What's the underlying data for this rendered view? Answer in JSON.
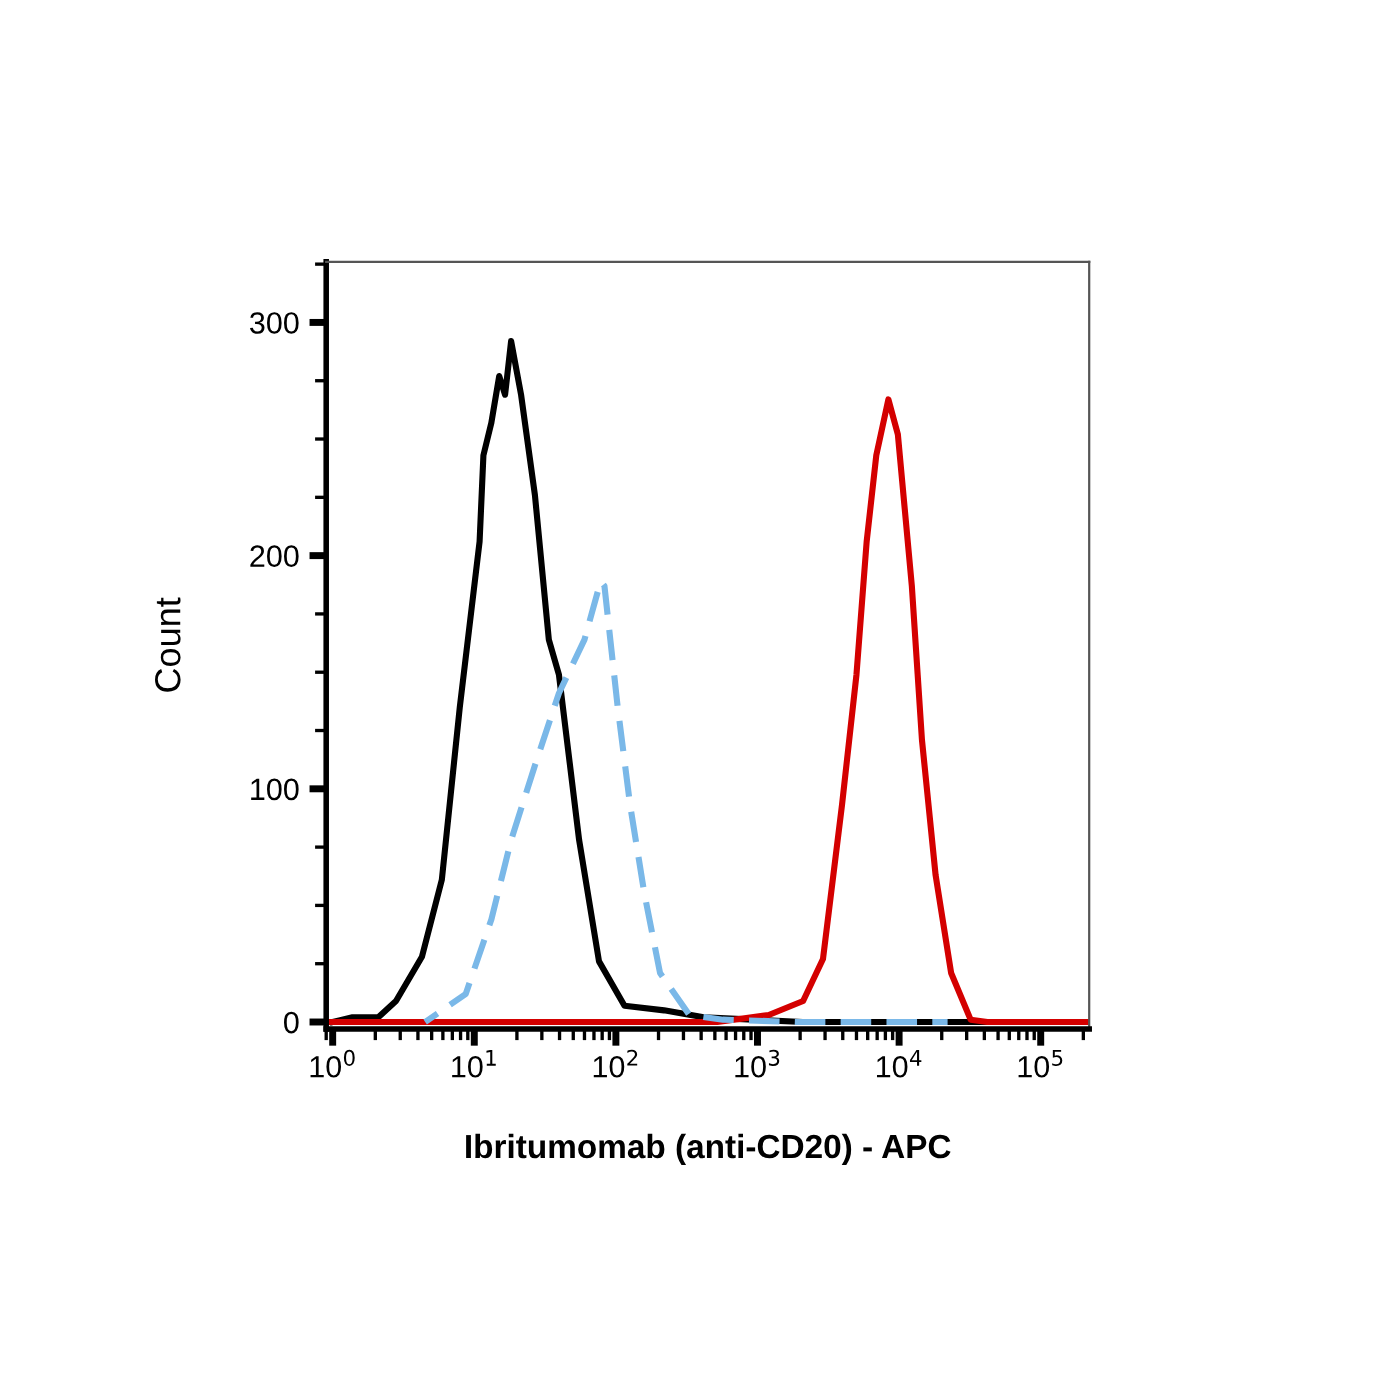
{
  "chart_data": {
    "type": "line",
    "xlabel": "Ibritumomab (anti-CD20) - APC",
    "ylabel": "Count",
    "log": "x",
    "xlim": [
      0.9,
      220000
    ],
    "ylim": [
      -3,
      326
    ],
    "xticks": [
      {
        "value": 1,
        "label": "10$^{0}$"
      },
      {
        "value": 10,
        "label": "10$^{1}$"
      },
      {
        "value": 100,
        "label": "10$^{2}$"
      },
      {
        "value": 1000,
        "label": "10$^{3}$"
      },
      {
        "value": 10000,
        "label": "10$^{4}$"
      },
      {
        "value": 100000,
        "label": "10$^{5}$"
      }
    ],
    "yticks": [
      0,
      100,
      200,
      300
    ],
    "grid": false,
    "legend": false,
    "marker": "none",
    "series": [
      {
        "color": "#000000",
        "line_style": "solid",
        "x": [
          1.0,
          1.38,
          2.1,
          2.8,
          4.27,
          5.9,
          7.9,
          10.9,
          11.6,
          13.2,
          15.0,
          16.5,
          18.2,
          21.4,
          26.8,
          33.6,
          39.6,
          55,
          76,
          115,
          219,
          417,
          2090,
          220000
        ],
        "values": [
          0,
          2,
          2,
          9,
          28,
          61,
          135,
          206,
          243,
          257,
          277,
          269,
          292,
          269,
          226,
          164,
          149,
          78,
          26,
          7,
          5,
          2,
          0,
          0
        ]
      },
      {
        "color": "#7ab8e8",
        "line_style": "dashed",
        "x": [
          4.5,
          8.7,
          13.2,
          18.2,
          26.8,
          39.6,
          60,
          78,
          83,
          103,
          126,
          159,
          205,
          330,
          570,
          1880,
          22000
        ],
        "values": [
          0,
          12,
          44,
          78,
          110,
          141,
          164,
          189,
          187,
          135,
          93,
          55,
          21,
          3,
          1,
          0,
          0
        ]
      },
      {
        "color": "#d40000",
        "line_style": "solid",
        "x": [
          0.9,
          520,
          1200,
          2100,
          2900,
          3950,
          5000,
          5900,
          6900,
          8400,
          9800,
          12300,
          14500,
          18100,
          23300,
          32000,
          42000,
          220000
        ],
        "values": [
          0,
          0,
          3,
          9,
          27,
          93,
          149,
          206,
          243,
          267,
          252,
          187,
          121,
          63,
          21,
          1,
          0,
          0
        ]
      }
    ]
  }
}
